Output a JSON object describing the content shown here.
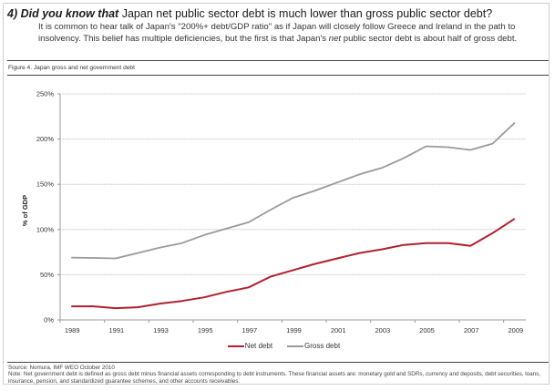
{
  "header": {
    "lead": "4) Did you know that",
    "title_rest": " Japan net public sector debt is much lower than gross public sector debt?",
    "intro_part1": "It is common to hear talk of Japan's \"200%+ debt/GDP ratio\" as if Japan will closely follow Greece and Ireland in the path to insolvency. This belief has multiple deficiencies, but the first is that Japan's ",
    "intro_em": "net",
    "intro_part2": " public sector debt is about half of gross debt."
  },
  "figure_title": "Figure 4. Japan gross and net government debt",
  "footer": {
    "source": "Source: Nomura, IMF WEO October 2010",
    "note": "Note:  Net government debt is defined as gross debt minus financial assets corresponding to debt instruments. These financial assets are: monetary gold and SDRs, currency and deposits, debt securities, loans, insurance, pension, and standardized guarantee schemes, and other accounts receivables."
  },
  "colors": {
    "net": "#b0202e",
    "gross": "#9a9a9a",
    "grid": "#c8c8c8",
    "axis": "#9a9a9a"
  },
  "chart_data": {
    "type": "line",
    "title": "Figure 4. Japan gross and net government debt",
    "xlabel": "",
    "ylabel": "% of GDP",
    "x": [
      1989,
      1990,
      1991,
      1992,
      1993,
      1994,
      1995,
      1996,
      1997,
      1998,
      1999,
      2000,
      2001,
      2002,
      2003,
      2004,
      2005,
      2006,
      2007,
      2008,
      2009
    ],
    "x_tick_labels": [
      "1989",
      "1991",
      "1993",
      "1995",
      "1997",
      "1999",
      "2001",
      "2003",
      "2005",
      "2007",
      "2009"
    ],
    "y_tick_labels": [
      "0%",
      "50%",
      "100%",
      "150%",
      "200%",
      "250%"
    ],
    "y_ticks": [
      0,
      50,
      100,
      150,
      200,
      250
    ],
    "ylim": [
      0,
      250
    ],
    "grid": true,
    "legend": "bottom",
    "series": [
      {
        "name": "Net debt",
        "color_key": "net",
        "values": [
          15,
          15,
          13,
          14,
          18,
          21,
          25,
          31,
          36,
          48,
          55,
          62,
          68,
          74,
          78,
          83,
          85,
          85,
          82,
          96,
          112
        ]
      },
      {
        "name": "Gross debt",
        "color_key": "gross",
        "values": [
          69,
          68.5,
          68,
          74,
          80,
          85,
          94,
          101,
          108,
          122,
          135,
          143,
          152,
          161,
          168,
          179,
          192,
          191,
          188,
          195,
          218
        ]
      }
    ]
  }
}
